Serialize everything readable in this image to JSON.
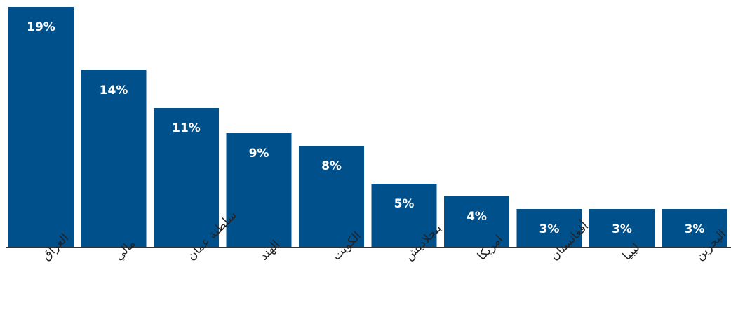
{
  "chart_data": {
    "type": "bar",
    "categories": [
      "العراق",
      "مالي",
      "سلطنة عمان",
      "الهند",
      "الكويت",
      "بنجلاديش",
      "امريكا",
      "أفغانستان",
      "ليبيا",
      "البحرين"
    ],
    "values": [
      19,
      14,
      11,
      9,
      8,
      5,
      4,
      3,
      3,
      3
    ],
    "value_labels": [
      "19%",
      "14%",
      "11%",
      "9%",
      "8%",
      "5%",
      "4%",
      "3%",
      "3%",
      "3%"
    ],
    "ylim": [
      0,
      20
    ],
    "grid": false,
    "legend": "none",
    "bar_color": "#00508c",
    "label_color": "#ffffff",
    "axis_color": "#333333"
  }
}
